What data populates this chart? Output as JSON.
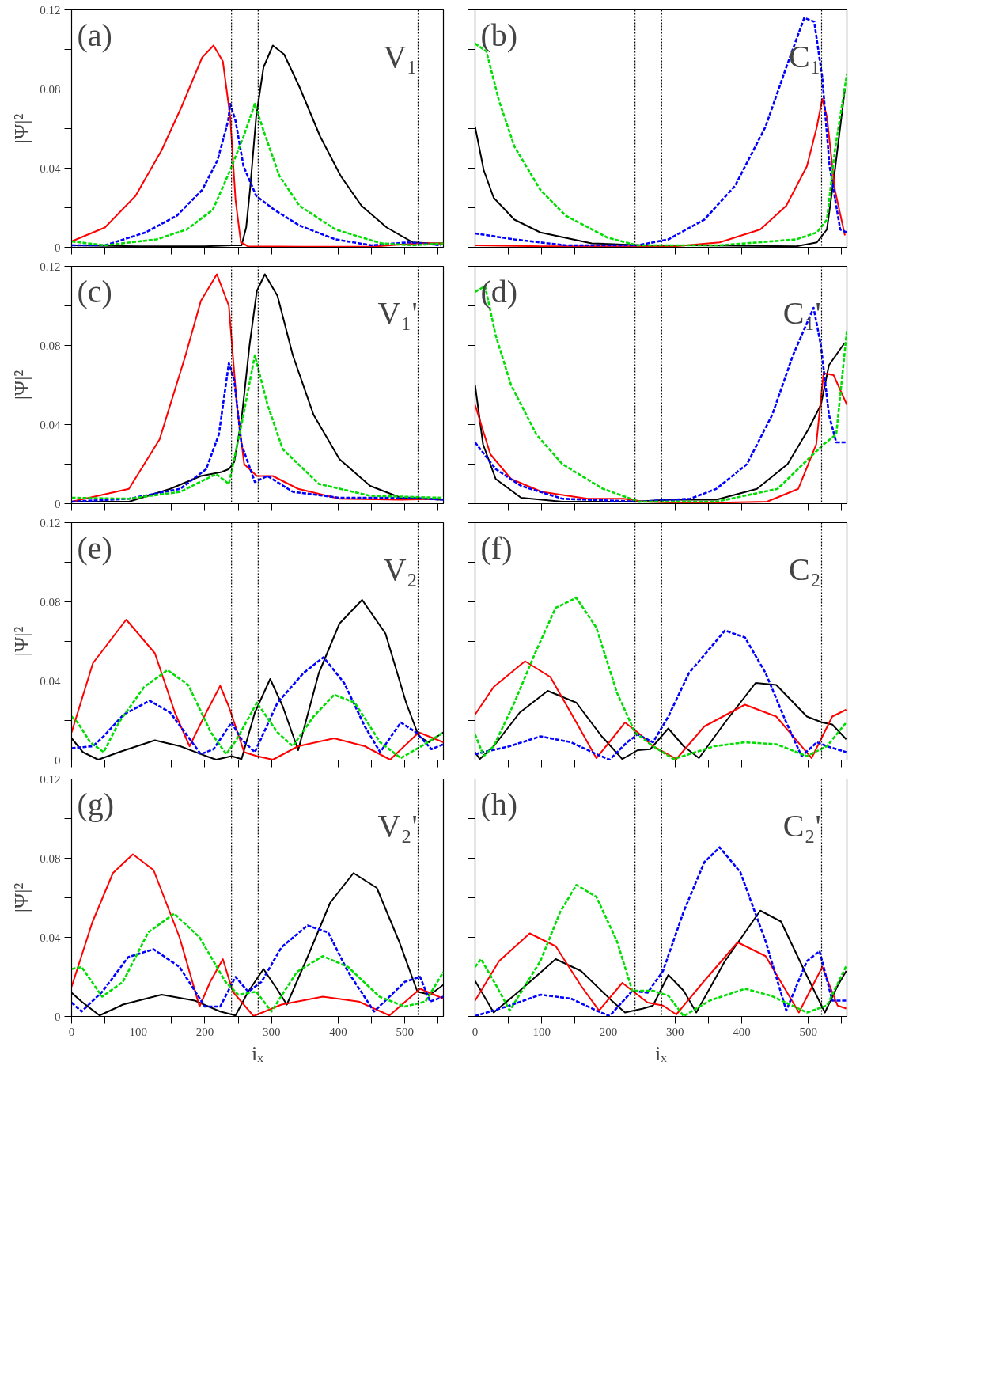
{
  "chart_data": [
    {
      "type": "line",
      "annotations": [
        "(a)",
        "V₁"
      ],
      "ylabel": "|Ψ|²",
      "xlim": [
        0,
        558
      ],
      "ylim": [
        0,
        0.12
      ],
      "xticks": [
        0,
        {
          "value": 50,
          "label": null
        },
        100,
        {
          "value": 150,
          "label": null
        },
        200,
        {
          "value": 250,
          "label": null
        },
        300,
        {
          "value": 350,
          "label": null
        },
        400,
        {
          "value": 450,
          "label": null
        },
        500,
        {
          "value": 550,
          "label": null
        }
      ],
      "yticks": [
        0,
        {
          "value": 0.02,
          "label": null
        },
        0.04,
        {
          "value": 0.06,
          "label": null
        },
        0.08,
        {
          "value": 0.1,
          "label": null
        },
        0.12
      ],
      "tick_labels": "y",
      "ref_lines": [
        {
          "axis": "x",
          "value": 240,
          "color": "#000000",
          "line_style": "dotted"
        },
        {
          "axis": "x",
          "value": 280,
          "color": "#000000",
          "line_style": "dotted"
        },
        {
          "axis": "x",
          "value": 520,
          "color": "#000000",
          "line_style": "dotted"
        }
      ],
      "series": [
        {
          "color": "#000000",
          "line_style": "solid",
          "x": [
            0,
            100,
            200,
            240,
            255,
            262,
            268,
            277,
            288,
            302,
            319,
            342,
            373,
            404,
            435,
            473,
            512,
            540,
            558
          ],
          "values": [
            0.001,
            0.0005,
            0.0005,
            0.001,
            0.001,
            0.01,
            0.03,
            0.066,
            0.091,
            0.102,
            0.0975,
            0.081,
            0.056,
            0.036,
            0.021,
            0.01,
            0.0025,
            0.002,
            0.002
          ]
        },
        {
          "color": "#ff0000",
          "line_style": "solid",
          "x": [
            0,
            50,
            96,
            135,
            165,
            196,
            213,
            227,
            238,
            246,
            254,
            265,
            350,
            450,
            520,
            558
          ],
          "values": [
            0.003,
            0.01,
            0.026,
            0.049,
            0.071,
            0.096,
            0.102,
            0.094,
            0.066,
            0.024,
            0.0025,
            0.0005,
            0.0003,
            0.0003,
            0.002,
            0.002
          ]
        },
        {
          "color": "#0000ff",
          "line_style": "dashed",
          "x": [
            0,
            50,
            111,
            158,
            196,
            219,
            235,
            238,
            246,
            258,
            277,
            304,
            342,
            396,
            450,
            504,
            527,
            554
          ],
          "values": [
            0.001,
            0.001,
            0.0075,
            0.016,
            0.029,
            0.044,
            0.064,
            0.0725,
            0.064,
            0.041,
            0.026,
            0.019,
            0.011,
            0.004,
            0.001,
            0.0025,
            0.002,
            0.001
          ]
        },
        {
          "color": "#00dd00",
          "line_style": "dashed",
          "x": [
            0,
            50,
            127,
            173,
            212,
            238,
            258,
            275,
            288,
            312,
            342,
            396,
            465,
            512,
            558
          ],
          "values": [
            0.003,
            0.001,
            0.004,
            0.009,
            0.019,
            0.039,
            0.056,
            0.0725,
            0.059,
            0.036,
            0.021,
            0.009,
            0.002,
            0.001,
            0.002
          ]
        }
      ]
    },
    {
      "type": "line",
      "annotations": [
        "(b)",
        "C₁"
      ],
      "xlim": [
        0,
        558
      ],
      "ylim": [
        0,
        0.12
      ],
      "xticks": [
        0,
        {
          "value": 50,
          "label": null
        },
        100,
        {
          "value": 150,
          "label": null
        },
        200,
        {
          "value": 250,
          "label": null
        },
        300,
        {
          "value": 350,
          "label": null
        },
        400,
        {
          "value": 450,
          "label": null
        },
        500,
        {
          "value": 550,
          "label": null
        }
      ],
      "yticks": [
        0,
        {
          "value": 0.02,
          "label": null
        },
        0.04,
        {
          "value": 0.06,
          "label": null
        },
        0.08,
        {
          "value": 0.1,
          "label": null
        },
        0.12
      ],
      "tick_labels": false,
      "ref_lines": [
        {
          "axis": "x",
          "value": 240,
          "color": "#000000",
          "line_style": "dotted"
        },
        {
          "axis": "x",
          "value": 280,
          "color": "#000000",
          "line_style": "dotted"
        },
        {
          "axis": "x",
          "value": 520,
          "color": "#000000",
          "line_style": "dotted"
        }
      ],
      "series": [
        {
          "color": "#000000",
          "line_style": "solid",
          "x": [
            0,
            13,
            28,
            59,
            98,
            175,
            252,
            328,
            482,
            513,
            528,
            540,
            555
          ],
          "values": [
            0.061,
            0.039,
            0.025,
            0.014,
            0.0075,
            0.002,
            0.001,
            0.001,
            0.0005,
            0.0025,
            0.009,
            0.039,
            0.08
          ]
        },
        {
          "color": "#ff0000",
          "line_style": "solid",
          "x": [
            0,
            100,
            200,
            300,
            367,
            428,
            467,
            498,
            513,
            521,
            528,
            540,
            555
          ],
          "values": [
            0.001,
            0.0005,
            0.0005,
            0.0005,
            0.0025,
            0.009,
            0.021,
            0.041,
            0.061,
            0.075,
            0.066,
            0.029,
            0.006
          ]
        },
        {
          "color": "#0000ff",
          "line_style": "dashed",
          "x": [
            0,
            59,
            136,
            244,
            290,
            344,
            390,
            436,
            467,
            494,
            509,
            521,
            532,
            548,
            558
          ],
          "values": [
            0.007,
            0.004,
            0.001,
            0.001,
            0.004,
            0.014,
            0.031,
            0.061,
            0.091,
            0.116,
            0.114,
            0.086,
            0.041,
            0.009,
            0.0075
          ]
        },
        {
          "color": "#00dd00",
          "line_style": "dashed",
          "x": [
            0,
            17,
            36,
            59,
            98,
            136,
            198,
            244,
            367,
            482,
            513,
            528,
            540,
            558
          ],
          "values": [
            0.103,
            0.099,
            0.074,
            0.051,
            0.029,
            0.016,
            0.005,
            0.001,
            0.001,
            0.004,
            0.0075,
            0.014,
            0.049,
            0.0875
          ]
        }
      ]
    },
    {
      "type": "line",
      "annotations": [
        "(c)",
        "V₁'"
      ],
      "ylabel": "|Ψ|²",
      "xlim": [
        0,
        558
      ],
      "ylim": [
        0,
        0.12
      ],
      "xticks": [
        0,
        {
          "value": 50,
          "label": null
        },
        100,
        {
          "value": 150,
          "label": null
        },
        200,
        {
          "value": 250,
          "label": null
        },
        300,
        {
          "value": 350,
          "label": null
        },
        400,
        {
          "value": 450,
          "label": null
        },
        500,
        {
          "value": 550,
          "label": null
        }
      ],
      "yticks": [
        0,
        {
          "value": 0.02,
          "label": null
        },
        0.04,
        {
          "value": 0.06,
          "label": null
        },
        0.08,
        {
          "value": 0.1,
          "label": null
        },
        0.12
      ],
      "tick_labels": "y",
      "ref_lines": [
        {
          "axis": "x",
          "value": 240,
          "color": "#000000",
          "line_style": "dotted"
        },
        {
          "axis": "x",
          "value": 280,
          "color": "#000000",
          "line_style": "dotted"
        },
        {
          "axis": "x",
          "value": 520,
          "color": "#000000",
          "line_style": "dotted"
        }
      ],
      "series": [
        {
          "color": "#000000",
          "line_style": "solid",
          "x": [
            0,
            86,
            148,
            194,
            225,
            236,
            244,
            255,
            267,
            278,
            290,
            309,
            332,
            363,
            402,
            448,
            494,
            555
          ],
          "values": [
            0.001,
            0.001,
            0.0075,
            0.014,
            0.016,
            0.0175,
            0.021,
            0.0425,
            0.08,
            0.1075,
            0.116,
            0.105,
            0.075,
            0.045,
            0.0225,
            0.009,
            0.003,
            0.002
          ]
        },
        {
          "color": "#ff0000",
          "line_style": "solid",
          "x": [
            0,
            86,
            132,
            171,
            194,
            218,
            236,
            248,
            259,
            278,
            302,
            340,
            402,
            494,
            555
          ],
          "values": [
            0.001,
            0.0075,
            0.0325,
            0.075,
            0.1025,
            0.116,
            0.1,
            0.05,
            0.02,
            0.014,
            0.014,
            0.0075,
            0.0025,
            0.002,
            0.0025
          ]
        },
        {
          "color": "#0000ff",
          "line_style": "dashed",
          "x": [
            0,
            86,
            163,
            202,
            221,
            236,
            244,
            255,
            275,
            294,
            332,
            402,
            509,
            558
          ],
          "values": [
            0.001,
            0.0025,
            0.0075,
            0.0175,
            0.035,
            0.071,
            0.0625,
            0.03,
            0.011,
            0.014,
            0.006,
            0.003,
            0.003,
            0.002
          ]
        },
        {
          "color": "#00dd00",
          "line_style": "dashed",
          "x": [
            0,
            86,
            163,
            217,
            236,
            255,
            275,
            294,
            317,
            371,
            448,
            555
          ],
          "values": [
            0.003,
            0.0025,
            0.006,
            0.015,
            0.01,
            0.04,
            0.075,
            0.05,
            0.0275,
            0.01,
            0.004,
            0.003
          ]
        }
      ]
    },
    {
      "type": "line",
      "annotations": [
        "(d)",
        "C₁'"
      ],
      "xlim": [
        0,
        558
      ],
      "ylim": [
        0,
        0.12
      ],
      "xticks": [
        0,
        {
          "value": 50,
          "label": null
        },
        100,
        {
          "value": 150,
          "label": null
        },
        200,
        {
          "value": 250,
          "label": null
        },
        300,
        {
          "value": 350,
          "label": null
        },
        400,
        {
          "value": 450,
          "label": null
        },
        500,
        {
          "value": 550,
          "label": null
        }
      ],
      "yticks": [
        0,
        {
          "value": 0.02,
          "label": null
        },
        0.04,
        {
          "value": 0.06,
          "label": null
        },
        0.08,
        {
          "value": 0.1,
          "label": null
        },
        0.12
      ],
      "tick_labels": false,
      "ref_lines": [
        {
          "axis": "x",
          "value": 240,
          "color": "#000000",
          "line_style": "dotted"
        },
        {
          "axis": "x",
          "value": 280,
          "color": "#000000",
          "line_style": "dotted"
        },
        {
          "axis": "x",
          "value": 520,
          "color": "#000000",
          "line_style": "dotted"
        }
      ],
      "series": [
        {
          "color": "#000000",
          "line_style": "solid",
          "x": [
            0,
            12,
            31,
            69,
            131,
            238,
            292,
            362,
            423,
            469,
            500,
            519,
            531,
            554
          ],
          "values": [
            0.06,
            0.03,
            0.0125,
            0.003,
            0.001,
            0.001,
            0.002,
            0.002,
            0.0075,
            0.02,
            0.0375,
            0.05,
            0.07,
            0.081
          ]
        },
        {
          "color": "#ff0000",
          "line_style": "solid",
          "x": [
            0,
            23,
            54,
            100,
            169,
            223,
            254,
            323,
            438,
            485,
            512,
            523,
            538,
            558
          ],
          "values": [
            0.05,
            0.025,
            0.0125,
            0.006,
            0.0025,
            0.0025,
            0.001,
            0.0002,
            0.001,
            0.0075,
            0.03,
            0.066,
            0.065,
            0.05
          ]
        },
        {
          "color": "#0000ff",
          "line_style": "dashed",
          "x": [
            0,
            31,
            69,
            131,
            246,
            323,
            362,
            408,
            446,
            477,
            508,
            519,
            531,
            542,
            558
          ],
          "values": [
            0.031,
            0.0175,
            0.009,
            0.0025,
            0.001,
            0.0025,
            0.0075,
            0.02,
            0.045,
            0.075,
            0.099,
            0.08,
            0.045,
            0.031,
            0.031
          ]
        },
        {
          "color": "#00dd00",
          "line_style": "dashed",
          "x": [
            0,
            15,
            31,
            54,
            92,
            131,
            192,
            246,
            362,
            454,
            492,
            523,
            542,
            558
          ],
          "values": [
            0.107,
            0.11,
            0.085,
            0.06,
            0.035,
            0.02,
            0.0075,
            0.001,
            0.001,
            0.0075,
            0.02,
            0.03,
            0.035,
            0.0875
          ]
        }
      ]
    },
    {
      "type": "line",
      "annotations": [
        "(e)",
        "V₂"
      ],
      "ylabel": "|Ψ|²",
      "xlim": [
        0,
        558
      ],
      "ylim": [
        0,
        0.12
      ],
      "xticks": [
        0,
        {
          "value": 50,
          "label": null
        },
        100,
        {
          "value": 150,
          "label": null
        },
        200,
        {
          "value": 250,
          "label": null
        },
        300,
        {
          "value": 350,
          "label": null
        },
        400,
        {
          "value": 450,
          "label": null
        },
        500,
        {
          "value": 550,
          "label": null
        }
      ],
      "yticks": [
        0,
        {
          "value": 0.02,
          "label": null
        },
        0.04,
        {
          "value": 0.06,
          "label": null
        },
        0.08,
        {
          "value": 0.1,
          "label": null
        },
        0.12
      ],
      "tick_labels": "y",
      "ref_lines": [
        {
          "axis": "x",
          "value": 240,
          "color": "#000000",
          "line_style": "dotted"
        },
        {
          "axis": "x",
          "value": 280,
          "color": "#000000",
          "line_style": "dotted"
        },
        {
          "axis": "x",
          "value": 520,
          "color": "#000000",
          "line_style": "dotted"
        }
      ],
      "series": [
        {
          "color": "#000000",
          "line_style": "solid",
          "x": [
            0,
            17,
            40,
            71,
            125,
            163,
            202,
            217,
            240,
            255,
            275,
            298,
            317,
            340,
            371,
            402,
            436,
            471,
            502,
            521,
            536,
            558
          ],
          "values": [
            0.011,
            0.004,
            0.0002,
            0.004,
            0.01,
            0.007,
            0.002,
            0.0002,
            0.002,
            0.0005,
            0.024,
            0.041,
            0.027,
            0.005,
            0.044,
            0.069,
            0.081,
            0.064,
            0.029,
            0.012,
            0.009,
            0.014
          ]
        },
        {
          "color": "#ff0000",
          "line_style": "solid",
          "x": [
            0,
            32,
            82,
            125,
            155,
            177,
            202,
            223,
            236,
            259,
            278,
            302,
            340,
            394,
            440,
            478,
            521,
            558
          ],
          "values": [
            0.014,
            0.049,
            0.071,
            0.054,
            0.024,
            0.007,
            0.024,
            0.0375,
            0.027,
            0.004,
            0.002,
            0.0002,
            0.007,
            0.011,
            0.007,
            0.0002,
            0.014,
            0.009
          ]
        },
        {
          "color": "#0000ff",
          "line_style": "dashed",
          "x": [
            0,
            32,
            48,
            78,
            117,
            148,
            194,
            213,
            240,
            255,
            275,
            309,
            348,
            378,
            409,
            440,
            463,
            494,
            517,
            540,
            558
          ],
          "values": [
            0.006,
            0.007,
            0.012,
            0.023,
            0.03,
            0.024,
            0.003,
            0.0055,
            0.019,
            0.0105,
            0.004,
            0.029,
            0.044,
            0.052,
            0.039,
            0.017,
            0.004,
            0.019,
            0.014,
            0.0055,
            0.008
          ]
        },
        {
          "color": "#00dd00",
          "line_style": "dashed",
          "x": [
            0,
            9,
            28,
            48,
            71,
            109,
            144,
            175,
            209,
            232,
            248,
            278,
            309,
            332,
            363,
            394,
            425,
            463,
            494,
            525,
            558
          ],
          "values": [
            0.022,
            0.019,
            0.009,
            0.004,
            0.019,
            0.037,
            0.0455,
            0.038,
            0.014,
            0.003,
            0.0105,
            0.029,
            0.014,
            0.007,
            0.022,
            0.033,
            0.029,
            0.009,
            0.001,
            0.007,
            0.014
          ]
        }
      ]
    },
    {
      "type": "line",
      "annotations": [
        "(f)",
        "C₂"
      ],
      "xlim": [
        0,
        558
      ],
      "ylim": [
        0,
        0.12
      ],
      "xticks": [
        0,
        {
          "value": 50,
          "label": null
        },
        100,
        {
          "value": 150,
          "label": null
        },
        200,
        {
          "value": 250,
          "label": null
        },
        300,
        {
          "value": 350,
          "label": null
        },
        400,
        {
          "value": 450,
          "label": null
        },
        500,
        {
          "value": 550,
          "label": null
        }
      ],
      "yticks": [
        0,
        {
          "value": 0.02,
          "label": null
        },
        0.04,
        {
          "value": 0.06,
          "label": null
        },
        0.08,
        {
          "value": 0.1,
          "label": null
        },
        0.12
      ],
      "tick_labels": false,
      "ref_lines": [
        {
          "axis": "x",
          "value": 240,
          "color": "#000000",
          "line_style": "dotted"
        },
        {
          "axis": "x",
          "value": 280,
          "color": "#000000",
          "line_style": "dotted"
        },
        {
          "axis": "x",
          "value": 520,
          "color": "#000000",
          "line_style": "dotted"
        }
      ],
      "series": [
        {
          "color": "#000000",
          "line_style": "solid",
          "x": [
            0,
            7,
            28,
            67,
            109,
            152,
            190,
            221,
            244,
            263,
            290,
            313,
            336,
            375,
            421,
            452,
            498,
            521,
            536,
            557
          ],
          "values": [
            0.004,
            0.0005,
            0.007,
            0.024,
            0.035,
            0.029,
            0.012,
            0.0005,
            0.005,
            0.0055,
            0.016,
            0.007,
            0.001,
            0.019,
            0.039,
            0.038,
            0.022,
            0.019,
            0.018,
            0.0105
          ]
        },
        {
          "color": "#ff0000",
          "line_style": "solid",
          "x": [
            0,
            28,
            75,
            113,
            152,
            182,
            205,
            225,
            244,
            267,
            302,
            344,
            405,
            452,
            505,
            536,
            557
          ],
          "values": [
            0.023,
            0.037,
            0.05,
            0.042,
            0.019,
            0.001,
            0.0105,
            0.019,
            0.014,
            0.007,
            0.0005,
            0.017,
            0.028,
            0.022,
            0.001,
            0.022,
            0.0255
          ]
        },
        {
          "color": "#0000ff",
          "line_style": "dashed",
          "x": [
            0,
            52,
            98,
            144,
            182,
            202,
            228,
            244,
            267,
            290,
            321,
            375,
            405,
            436,
            467,
            490,
            513,
            528,
            557
          ],
          "values": [
            0.003,
            0.007,
            0.012,
            0.009,
            0.003,
            0.0002,
            0.009,
            0.013,
            0.009,
            0.022,
            0.044,
            0.0655,
            0.062,
            0.044,
            0.019,
            0.002,
            0.009,
            0.007,
            0.004
          ]
        },
        {
          "color": "#00dd00",
          "line_style": "dashed",
          "x": [
            0,
            13,
            28,
            59,
            90,
            121,
            152,
            182,
            213,
            240,
            267,
            298,
            359,
            405,
            452,
            498,
            528,
            557
          ],
          "values": [
            0.013,
            0.002,
            0.007,
            0.029,
            0.054,
            0.077,
            0.082,
            0.067,
            0.034,
            0.014,
            0.007,
            0.0005,
            0.007,
            0.009,
            0.008,
            0.002,
            0.007,
            0.019
          ]
        }
      ]
    },
    {
      "type": "line",
      "annotations": [
        "(g)",
        "V₂'"
      ],
      "ylabel": "|Ψ|²",
      "xlabel": "iₓ",
      "xlim": [
        0,
        558
      ],
      "ylim": [
        0,
        0.12
      ],
      "xticks": [
        0,
        {
          "value": 50,
          "label": null
        },
        100,
        {
          "value": 150,
          "label": null
        },
        200,
        {
          "value": 250,
          "label": null
        },
        300,
        {
          "value": 350,
          "label": null
        },
        400,
        {
          "value": 450,
          "label": null
        },
        500,
        {
          "value": 550,
          "label": null
        }
      ],
      "yticks": [
        0,
        {
          "value": 0.02,
          "label": null
        },
        0.04,
        {
          "value": 0.06,
          "label": null
        },
        0.08,
        {
          "value": 0.1,
          "label": null
        },
        0.12
      ],
      "ref_lines": [
        {
          "axis": "x",
          "value": 240,
          "color": "#000000",
          "line_style": "dotted"
        },
        {
          "axis": "x",
          "value": 280,
          "color": "#000000",
          "line_style": "dotted"
        },
        {
          "axis": "x",
          "value": 520,
          "color": "#000000",
          "line_style": "dotted"
        }
      ],
      "series": [
        {
          "color": "#000000",
          "line_style": "solid",
          "x": [
            0,
            15,
            42,
            77,
            135,
            185,
            223,
            246,
            265,
            288,
            308,
            323,
            354,
            388,
            423,
            458,
            492,
            519,
            538,
            558
          ],
          "values": [
            0.012,
            0.0075,
            0.0005,
            0.006,
            0.011,
            0.008,
            0.0025,
            0.0005,
            0.0125,
            0.024,
            0.014,
            0.006,
            0.03,
            0.0575,
            0.0725,
            0.065,
            0.0375,
            0.0125,
            0.011,
            0.016
          ]
        },
        {
          "color": "#ff0000",
          "line_style": "solid",
          "x": [
            0,
            31,
            62,
            92,
            123,
            162,
            192,
            208,
            227,
            242,
            273,
            315,
            377,
            431,
            477,
            523,
            558
          ],
          "values": [
            0.015,
            0.0475,
            0.0725,
            0.082,
            0.074,
            0.04,
            0.005,
            0.0175,
            0.029,
            0.0125,
            0.0002,
            0.006,
            0.01,
            0.0075,
            0.0005,
            0.014,
            0.009
          ]
        },
        {
          "color": "#0000ff",
          "line_style": "dashed",
          "x": [
            0,
            15,
            46,
            85,
            123,
            162,
            200,
            223,
            246,
            265,
            285,
            315,
            354,
            385,
            415,
            454,
            500,
            523,
            538,
            558
          ],
          "values": [
            0.007,
            0.0025,
            0.0125,
            0.03,
            0.034,
            0.025,
            0.005,
            0.005,
            0.02,
            0.0125,
            0.0175,
            0.035,
            0.046,
            0.0425,
            0.0225,
            0.0025,
            0.0175,
            0.02,
            0.0075,
            0.01
          ]
        },
        {
          "color": "#00dd00",
          "line_style": "dashed",
          "x": [
            0,
            15,
            46,
            77,
            115,
            154,
            192,
            231,
            250,
            277,
            300,
            338,
            377,
            415,
            462,
            500,
            531,
            558
          ],
          "values": [
            0.024,
            0.025,
            0.01,
            0.0175,
            0.0425,
            0.052,
            0.04,
            0.0175,
            0.011,
            0.0125,
            0.0025,
            0.0225,
            0.0305,
            0.025,
            0.01,
            0.005,
            0.0075,
            0.0225
          ]
        }
      ]
    },
    {
      "type": "line",
      "annotations": [
        "(h)",
        "C₂'"
      ],
      "xlabel": "iₓ",
      "xlim": [
        0,
        558
      ],
      "ylim": [
        0,
        0.12
      ],
      "xticks": [
        0,
        {
          "value": 50,
          "label": null
        },
        100,
        {
          "value": 150,
          "label": null
        },
        200,
        {
          "value": 250,
          "label": null
        },
        300,
        {
          "value": 350,
          "label": null
        },
        400,
        {
          "value": 450,
          "label": null
        },
        500,
        {
          "value": 550,
          "label": null
        }
      ],
      "yticks": [
        0,
        {
          "value": 0.02,
          "label": null
        },
        0.04,
        {
          "value": 0.06,
          "label": null
        },
        0.08,
        {
          "value": 0.1,
          "label": null
        },
        0.12
      ],
      "tick_labels": "x",
      "ref_lines": [
        {
          "axis": "x",
          "value": 240,
          "color": "#000000",
          "line_style": "dotted"
        },
        {
          "axis": "x",
          "value": 280,
          "color": "#000000",
          "line_style": "dotted"
        },
        {
          "axis": "x",
          "value": 520,
          "color": "#000000",
          "line_style": "dotted"
        }
      ],
      "series": [
        {
          "color": "#000000",
          "line_style": "solid",
          "x": [
            0,
            28,
            67,
            121,
            159,
            205,
            225,
            252,
            267,
            290,
            313,
            332,
            375,
            428,
            459,
            498,
            525,
            544,
            557
          ],
          "values": [
            0.018,
            0.002,
            0.013,
            0.029,
            0.023,
            0.008,
            0.002,
            0.004,
            0.0055,
            0.021,
            0.013,
            0.002,
            0.028,
            0.0535,
            0.048,
            0.0205,
            0.002,
            0.0155,
            0.023
          ]
        },
        {
          "color": "#ff0000",
          "line_style": "solid",
          "x": [
            0,
            36,
            82,
            121,
            159,
            186,
            221,
            236,
            259,
            282,
            302,
            344,
            394,
            436,
            486,
            521,
            544,
            557
          ],
          "values": [
            0.008,
            0.028,
            0.042,
            0.0355,
            0.0155,
            0.003,
            0.017,
            0.013,
            0.007,
            0.0055,
            0.001,
            0.018,
            0.0375,
            0.0305,
            0.002,
            0.025,
            0.0055,
            0.004
          ]
        },
        {
          "color": "#0000ff",
          "line_style": "dashed",
          "x": [
            0,
            52,
            98,
            144,
            182,
            202,
            236,
            259,
            282,
            313,
            344,
            367,
            398,
            436,
            467,
            498,
            517,
            536,
            557
          ],
          "values": [
            0.0002,
            0.0055,
            0.011,
            0.009,
            0.003,
            0.0002,
            0.013,
            0.012,
            0.023,
            0.053,
            0.078,
            0.0855,
            0.073,
            0.038,
            0.003,
            0.028,
            0.033,
            0.008,
            0.008
          ]
        },
        {
          "color": "#00dd00",
          "line_style": "dashed",
          "x": [
            0,
            9,
            32,
            52,
            98,
            128,
            152,
            182,
            213,
            236,
            267,
            290,
            313,
            352,
            405,
            444,
            498,
            528,
            557
          ],
          "values": [
            0.025,
            0.029,
            0.0155,
            0.003,
            0.028,
            0.053,
            0.0665,
            0.0605,
            0.038,
            0.013,
            0.013,
            0.0105,
            0.0002,
            0.008,
            0.014,
            0.0105,
            0.002,
            0.0055,
            0.0255
          ]
        }
      ]
    }
  ]
}
